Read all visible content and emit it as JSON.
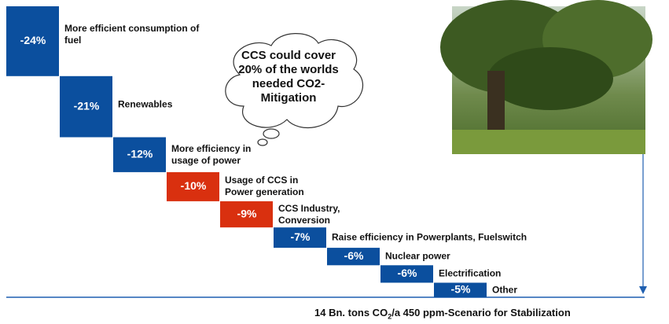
{
  "chart_data": {
    "type": "waterfall",
    "categories": [
      "More efficient consumption of fuel",
      "Renewables",
      "More efficiency in usage of power",
      "Usage of CCS in Power generation",
      "CCS Industry, Conversion",
      "Raise efficiency in Powerplants, Fuelswitch",
      "Nuclear power",
      "Electrification",
      "Other"
    ],
    "values": [
      -24,
      -21,
      -12,
      -10,
      -9,
      -7,
      -6,
      -6,
      -5
    ],
    "value_labels": [
      "-24%",
      "-21%",
      "-12%",
      "-10%",
      "-9%",
      "-7%",
      "-6%",
      "-6%",
      "-5%"
    ],
    "colors": [
      "#0b4f9e",
      "#0b4f9e",
      "#0b4f9e",
      "#d9300f",
      "#d9300f",
      "#0b4f9e",
      "#0b4f9e",
      "#0b4f9e",
      "#0b4f9e"
    ],
    "annotation": "CCS could cover 20% of the worlds needed CO2-Mitigation",
    "footer": [
      "14 Bn. tons CO",
      "2",
      "/a 450 ppm-Scenario for Stabilization"
    ]
  }
}
